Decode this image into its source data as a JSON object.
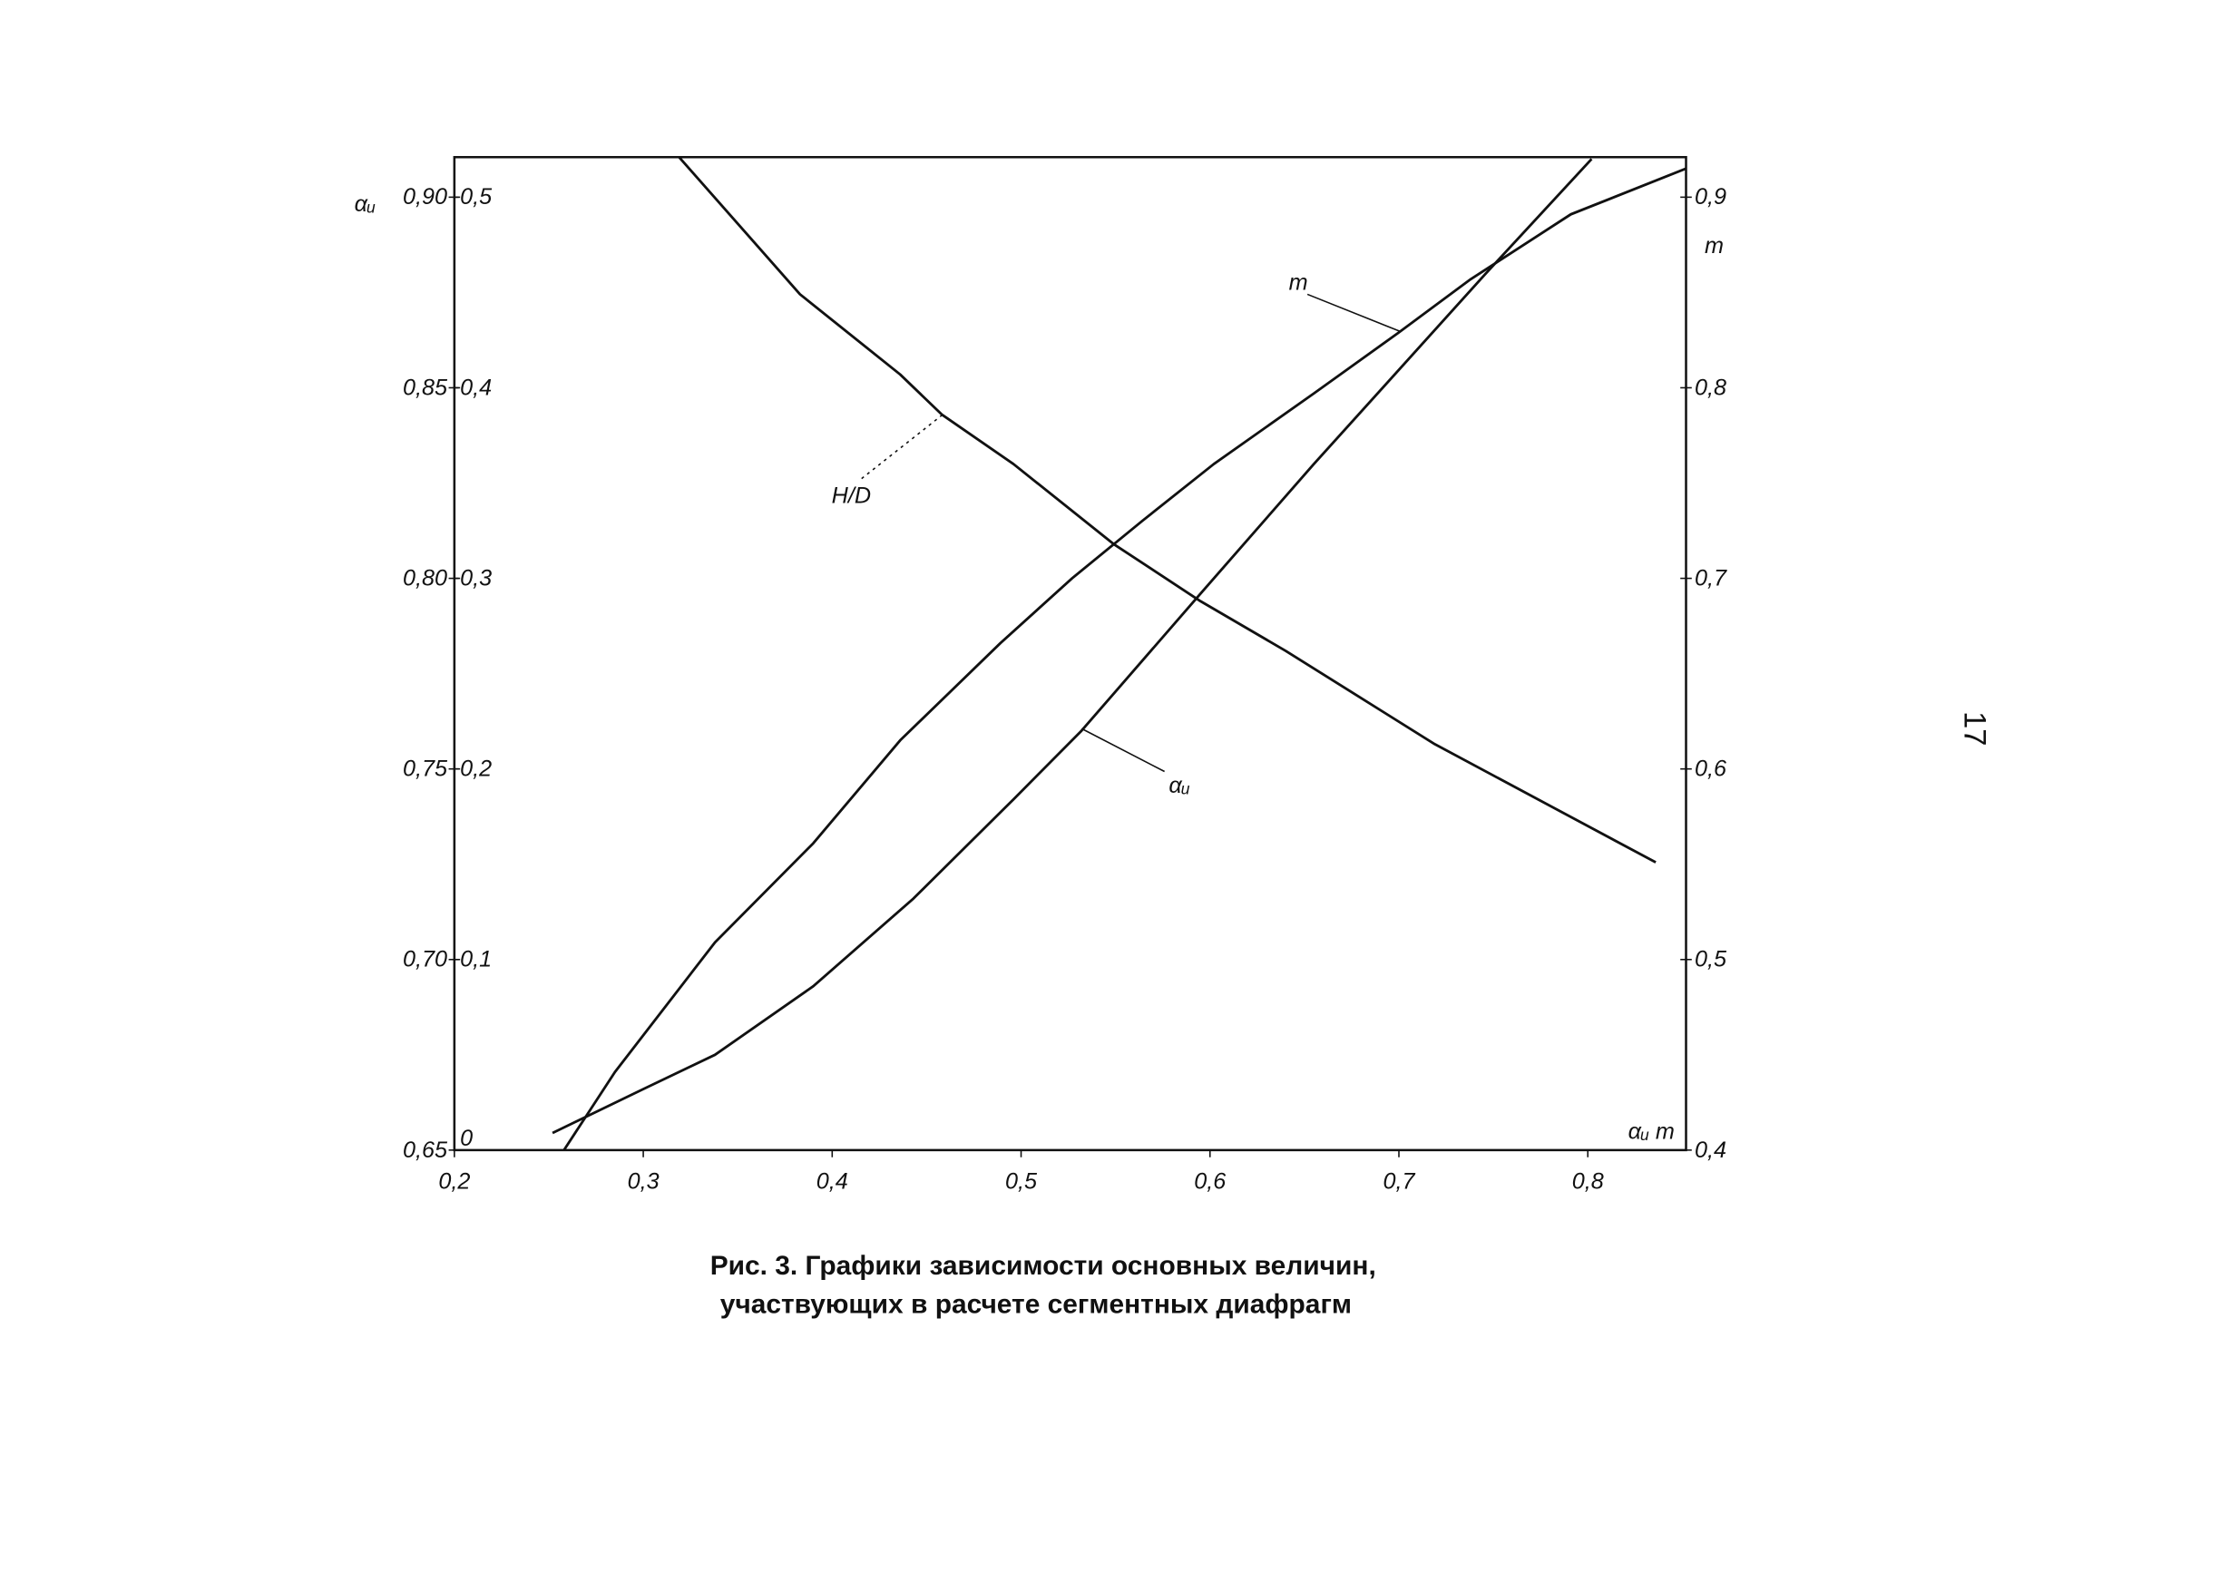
{
  "page_number": "17",
  "chart_data": {
    "type": "line",
    "title": [
      "Рис. 3. Графики зависимости основных величин,",
      "участвующих в расчете сегментных диафрагм"
    ],
    "x_label": "αᵤ m",
    "y_label": "αᵤ",
    "y2_label": "m",
    "xlim": [
      0.2,
      0.852
    ],
    "xticks": [
      {
        "value": 0.2,
        "label": "0,2"
      },
      {
        "value": 0.3,
        "label": "0,3"
      },
      {
        "value": 0.4,
        "label": "0,4"
      },
      {
        "value": 0.5,
        "label": "0,5"
      },
      {
        "value": 0.6,
        "label": "0,6"
      },
      {
        "value": 0.7,
        "label": "0,7"
      },
      {
        "value": 0.8,
        "label": "0,8"
      }
    ],
    "ylim": [
      0.65,
      0.9105
    ],
    "yticks": [
      {
        "value": 0.65,
        "label": "0,65"
      },
      {
        "value": 0.7,
        "label": "0,70"
      },
      {
        "value": 0.75,
        "label": "0,75"
      },
      {
        "value": 0.8,
        "label": "0,80"
      },
      {
        "value": 0.85,
        "label": "0,85"
      },
      {
        "value": 0.9,
        "label": "0,90"
      }
    ],
    "y3lim": [
      0,
      0.521
    ],
    "y3ticks": [
      0,
      {
        "value": 0.1,
        "label": "0,1"
      },
      {
        "value": 0.2,
        "label": "0,2"
      },
      {
        "value": 0.3,
        "label": "0,3"
      },
      {
        "value": 0.4,
        "label": "0,4"
      },
      {
        "value": 0.5,
        "label": "0,5"
      }
    ],
    "y2lim": [
      0.4,
      0.921
    ],
    "y2ticks": [
      {
        "value": 0.4,
        "label": "0,4"
      },
      {
        "value": 0.5,
        "label": "0,5"
      },
      {
        "value": 0.6,
        "label": "0,6"
      },
      {
        "value": 0.7,
        "label": "0,7"
      },
      {
        "value": 0.8,
        "label": "0,8"
      },
      {
        "value": 0.9,
        "label": "0,9"
      }
    ],
    "series": [
      {
        "name": "H/D",
        "color": "#111111",
        "axis": "y3",
        "x": [
          0.319,
          0.383,
          0.436,
          0.458,
          0.496,
          0.549,
          0.595,
          0.64,
          0.719,
          0.836
        ],
        "values": [
          0.521,
          0.449,
          0.407,
          0.386,
          0.36,
          0.318,
          0.288,
          0.262,
          0.213,
          0.151
        ]
      },
      {
        "name": "m",
        "color": "#111111",
        "axis": "y2",
        "x": [
          0.258,
          0.285,
          0.338,
          0.39,
          0.436,
          0.489,
          0.527,
          0.564,
          0.602,
          0.655,
          0.7,
          0.738,
          0.791,
          0.852
        ],
        "values": [
          0.4,
          0.441,
          0.509,
          0.561,
          0.615,
          0.666,
          0.7,
          0.73,
          0.76,
          0.797,
          0.829,
          0.857,
          0.891,
          0.915
        ]
      },
      {
        "name": "αᵤ",
        "color": "#111111",
        "axis": "y",
        "x": [
          0.252,
          0.3,
          0.338,
          0.39,
          0.443,
          0.496,
          0.532,
          0.595,
          0.655,
          0.746,
          0.802
        ],
        "values": [
          0.6545,
          0.666,
          0.675,
          0.693,
          0.716,
          0.742,
          0.76,
          0.796,
          0.83,
          0.88,
          0.91
        ]
      }
    ]
  }
}
